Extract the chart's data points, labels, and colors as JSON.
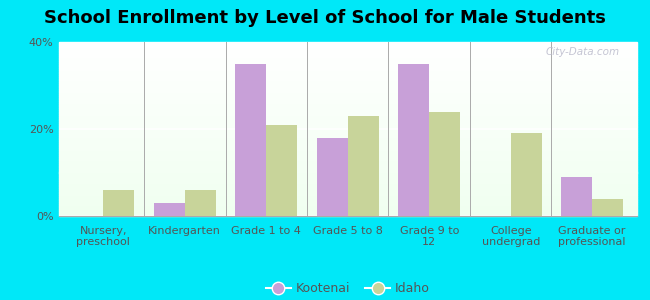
{
  "title": "School Enrollment by Level of School for Male Students",
  "categories": [
    "Nursery,\npreschool",
    "Kindergarten",
    "Grade 1 to 4",
    "Grade 5 to 8",
    "Grade 9 to\n12",
    "College\nundergrad",
    "Graduate or\nprofessional"
  ],
  "kootenai": [
    0,
    3,
    35,
    18,
    35,
    0,
    9
  ],
  "idaho": [
    6,
    6,
    21,
    23,
    24,
    19,
    4
  ],
  "kootenai_color": "#c8a0d8",
  "idaho_color": "#c8d49a",
  "background_color": "#00e8f8",
  "ylim": [
    0,
    40
  ],
  "yticks": [
    0,
    20,
    40
  ],
  "ytick_labels": [
    "0%",
    "20%",
    "40%"
  ],
  "bar_width": 0.38,
  "legend_labels": [
    "Kootenai",
    "Idaho"
  ],
  "title_fontsize": 13,
  "tick_fontsize": 8,
  "watermark": "City-Data.com"
}
